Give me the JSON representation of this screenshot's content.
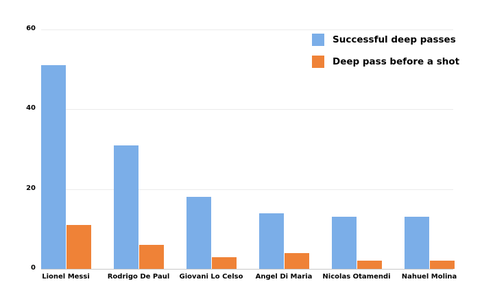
{
  "chart_data": {
    "type": "bar",
    "title": "",
    "xlabel": "",
    "ylabel": "",
    "ylim": [
      0,
      60
    ],
    "yticks": [
      0,
      20,
      40,
      60
    ],
    "grid": true,
    "legend_position": "top-right",
    "categories": [
      "Lionel Messi",
      "Rodrigo De Paul",
      "Giovani Lo Celso",
      "Angel Di Maria",
      "Nicolas Otamendi",
      "Nahuel Molina"
    ],
    "series": [
      {
        "name": "Successful deep passes",
        "color": "#7baee8",
        "values": [
          51,
          31,
          18,
          14,
          13,
          13
        ]
      },
      {
        "name": "Deep pass before a shot",
        "color": "#ef8237",
        "values": [
          11,
          6,
          3,
          4,
          2,
          2
        ]
      }
    ]
  }
}
